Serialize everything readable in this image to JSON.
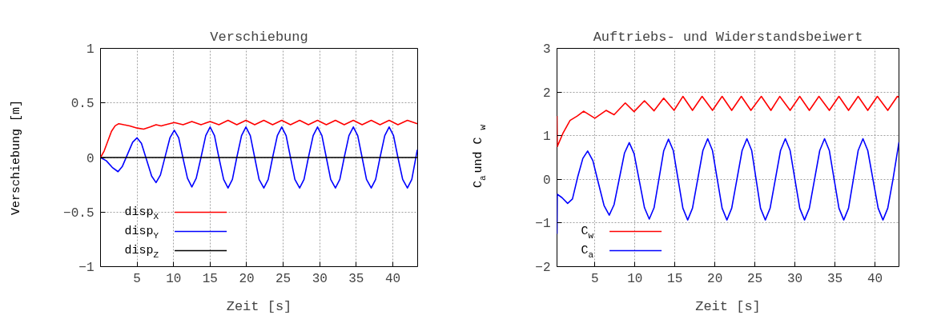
{
  "chart_data": [
    {
      "type": "line",
      "title": "Verschiebung",
      "xlabel": "Zeit [s]",
      "ylabel": "Verschiebung [m]",
      "xlim": [
        0,
        43.4
      ],
      "ylim": [
        -1,
        1
      ],
      "xticks": [
        5,
        10,
        15,
        20,
        25,
        30,
        35,
        40
      ],
      "yticks": [
        {
          "value": -1,
          "label": "−1"
        },
        {
          "value": -0.5,
          "label": "−0.5"
        },
        0,
        0.5,
        1
      ],
      "grid": true,
      "legend": "bottom left",
      "line_style": "solid",
      "marker": "none",
      "series": [
        {
          "name": "disp$_{X}$",
          "color": "#ff0000",
          "x": [
            0,
            0.5,
            1.0,
            1.5,
            2.0,
            2.5,
            3.2,
            4.0,
            5.0,
            5.9,
            6.8,
            7.6,
            8.3,
            8.9,
            10.1,
            11.3,
            12.5,
            13.75,
            15.0,
            16.2,
            17.45,
            18.65,
            19.9,
            21.1,
            22.35,
            23.55,
            24.8,
            26.0,
            27.25,
            28.45,
            29.7,
            30.9,
            32.15,
            33.35,
            34.6,
            35.8,
            37.05,
            38.25,
            39.5,
            40.7,
            42.0,
            43.35
          ],
          "values": [
            0,
            0.06,
            0.15,
            0.24,
            0.29,
            0.31,
            0.3,
            0.29,
            0.27,
            0.26,
            0.28,
            0.3,
            0.29,
            0.3,
            0.32,
            0.3,
            0.33,
            0.3,
            0.33,
            0.3,
            0.34,
            0.3,
            0.34,
            0.3,
            0.34,
            0.3,
            0.34,
            0.3,
            0.34,
            0.3,
            0.34,
            0.3,
            0.34,
            0.3,
            0.34,
            0.3,
            0.34,
            0.3,
            0.34,
            0.3,
            0.34,
            0.31
          ]
        },
        {
          "name": "disp$_{Y}$",
          "color": "#0000ff",
          "x": [
            0,
            0.8,
            1.6,
            2.4,
            3.0,
            3.7,
            4.4,
            5.0,
            5.6,
            6.3,
            7.0,
            7.6,
            8.2,
            8.85,
            9.5,
            10.1,
            10.7,
            11.3,
            11.9,
            12.5,
            13.1,
            13.75,
            14.4,
            15.0,
            15.6,
            16.2,
            16.85,
            17.45,
            18.05,
            18.65,
            19.3,
            19.9,
            20.5,
            21.1,
            21.7,
            22.35,
            22.95,
            23.55,
            24.2,
            24.8,
            25.4,
            26.0,
            26.6,
            27.25,
            27.85,
            28.45,
            29.1,
            29.7,
            30.3,
            30.9,
            31.5,
            32.15,
            32.75,
            33.35,
            34.0,
            34.6,
            35.2,
            35.8,
            36.4,
            37.05,
            37.65,
            38.25,
            38.9,
            39.5,
            40.1,
            40.7,
            41.35,
            42.0,
            42.6,
            43.35
          ],
          "values": [
            0,
            -0.03,
            -0.09,
            -0.13,
            -0.08,
            0.03,
            0.14,
            0.18,
            0.13,
            -0.02,
            -0.17,
            -0.23,
            -0.16,
            0.01,
            0.18,
            0.25,
            0.18,
            -0.01,
            -0.19,
            -0.27,
            -0.19,
            0,
            0.2,
            0.28,
            0.2,
            0,
            -0.2,
            -0.28,
            -0.2,
            0,
            0.2,
            0.28,
            0.2,
            0,
            -0.2,
            -0.28,
            -0.2,
            0,
            0.2,
            0.28,
            0.2,
            0,
            -0.2,
            -0.28,
            -0.2,
            0,
            0.2,
            0.28,
            0.2,
            0,
            -0.2,
            -0.28,
            -0.2,
            0,
            0.2,
            0.28,
            0.2,
            0,
            -0.2,
            -0.28,
            -0.2,
            0,
            0.2,
            0.28,
            0.2,
            0,
            -0.2,
            -0.28,
            -0.2,
            0.07
          ]
        },
        {
          "name": "disp$_{Z}$",
          "color": "#000000",
          "x": [
            0,
            43.35
          ],
          "values": [
            0,
            0
          ]
        }
      ]
    },
    {
      "type": "line",
      "title": "Auftriebs- und Widerstandsbeiwert",
      "xlabel": "Zeit [s]",
      "ylabel": "C$_{a}$ und C$_{w}$",
      "xlim": [
        0.27,
        43
      ],
      "ylim": [
        -2,
        3
      ],
      "xticks": [
        5,
        10,
        15,
        20,
        25,
        30,
        35,
        40
      ],
      "yticks": [
        {
          "value": -2,
          "label": "−2"
        },
        {
          "value": -1,
          "label": "−1"
        },
        0,
        1,
        2,
        3
      ],
      "grid": true,
      "legend": "bottom left",
      "line_style": "solid",
      "marker": "none",
      "series": [
        {
          "name": "C$_{w}$",
          "color": "#ff0000",
          "x": [
            0.27,
            0.3,
            1.0,
            1.9,
            2.8,
            3.6,
            5.0,
            6.4,
            7.4,
            8.8,
            9.9,
            11.2,
            12.4,
            13.6,
            14.9,
            16.0,
            17.2,
            18.4,
            19.7,
            20.9,
            22.1,
            23.3,
            24.5,
            25.8,
            27.0,
            28.1,
            29.4,
            30.6,
            31.8,
            33.0,
            34.3,
            35.5,
            36.7,
            37.9,
            39.1,
            40.3,
            41.6,
            42.8,
            43.0
          ],
          "values": [
            1.45,
            0.75,
            1.05,
            1.35,
            1.45,
            1.56,
            1.4,
            1.58,
            1.48,
            1.75,
            1.55,
            1.8,
            1.57,
            1.86,
            1.58,
            1.9,
            1.58,
            1.9,
            1.58,
            1.9,
            1.58,
            1.9,
            1.58,
            1.9,
            1.58,
            1.9,
            1.58,
            1.9,
            1.58,
            1.9,
            1.58,
            1.9,
            1.58,
            1.9,
            1.58,
            1.9,
            1.58,
            1.9,
            1.88
          ]
        },
        {
          "name": "C$_{a}$",
          "color": "#0000ff",
          "x": [
            0.27,
            0.3,
            0.9,
            1.6,
            2.2,
            2.85,
            3.5,
            4.1,
            4.75,
            5.45,
            6.15,
            6.8,
            7.4,
            8.05,
            8.7,
            9.3,
            9.9,
            10.55,
            11.2,
            11.8,
            12.4,
            13.0,
            13.6,
            14.2,
            14.8,
            15.4,
            16.0,
            16.6,
            17.2,
            17.85,
            18.5,
            19.1,
            19.7,
            20.3,
            20.9,
            21.5,
            22.1,
            22.75,
            23.4,
            24.0,
            24.6,
            25.15,
            25.7,
            26.3,
            26.9,
            27.55,
            28.2,
            28.8,
            29.4,
            30.0,
            30.6,
            31.2,
            31.8,
            32.45,
            33.1,
            33.7,
            34.3,
            34.9,
            35.5,
            36.1,
            36.7,
            37.3,
            37.9,
            38.5,
            39.1,
            39.75,
            40.4,
            41.0,
            41.6,
            42.25,
            43.0
          ],
          "values": [
            -1.25,
            -0.34,
            -0.42,
            -0.55,
            -0.45,
            0.05,
            0.48,
            0.65,
            0.43,
            -0.09,
            -0.6,
            -0.82,
            -0.58,
            0.01,
            0.6,
            0.84,
            0.59,
            -0.03,
            -0.65,
            -0.91,
            -0.65,
            0,
            0.65,
            0.92,
            0.66,
            0,
            -0.66,
            -0.93,
            -0.66,
            0,
            0.66,
            0.93,
            0.66,
            0,
            -0.66,
            -0.93,
            -0.66,
            0,
            0.66,
            0.93,
            0.66,
            0,
            -0.66,
            -0.93,
            -0.66,
            0,
            0.66,
            0.93,
            0.66,
            0,
            -0.66,
            -0.93,
            -0.66,
            0,
            0.66,
            0.93,
            0.66,
            0,
            -0.66,
            -0.93,
            -0.66,
            0,
            0.66,
            0.93,
            0.66,
            0,
            -0.66,
            -0.93,
            -0.66,
            0,
            0.85
          ]
        }
      ]
    }
  ]
}
